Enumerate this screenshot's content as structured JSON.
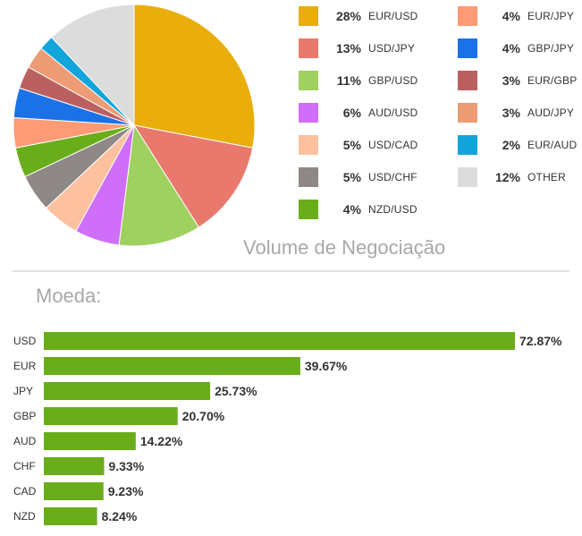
{
  "chart_data": [
    {
      "type": "pie",
      "title": "Volume de Negociação",
      "slices": [
        {
          "label": "EUR/USD",
          "value": 28,
          "display": "28%",
          "color": "#e9ae0b"
        },
        {
          "label": "USD/JPY",
          "value": 13,
          "display": "13%",
          "color": "#e8796c"
        },
        {
          "label": "GBP/USD",
          "value": 11,
          "display": "11%",
          "color": "#9fd160"
        },
        {
          "label": "AUD/USD",
          "value": 6,
          "display": "6%",
          "color": "#cf6ef8"
        },
        {
          "label": "USD/CAD",
          "value": 5,
          "display": "5%",
          "color": "#fdc1a0"
        },
        {
          "label": "USD/CHF",
          "value": 5,
          "display": "5%",
          "color": "#8e8886"
        },
        {
          "label": "NZD/USD",
          "value": 4,
          "display": "4%",
          "color": "#6aad1a"
        },
        {
          "label": "EUR/JPY",
          "value": 4,
          "display": "4%",
          "color": "#fe9a74"
        },
        {
          "label": "GBP/JPY",
          "value": 4,
          "display": "4%",
          "color": "#1b72e6"
        },
        {
          "label": "EUR/GBP",
          "value": 3,
          "display": "3%",
          "color": "#bb6061"
        },
        {
          "label": "AUD/JPY",
          "value": 3,
          "display": "3%",
          "color": "#ec9b74"
        },
        {
          "label": "EUR/AUD",
          "value": 2,
          "display": "2%",
          "color": "#11a5db"
        },
        {
          "label": "OTHER",
          "value": 12,
          "display": "12%",
          "color": "#dcdcdc"
        }
      ]
    },
    {
      "type": "bar",
      "orientation": "horizontal",
      "title": "Moeda:",
      "categories": [
        "USD",
        "EUR",
        "JPY",
        "GBP",
        "AUD",
        "CHF",
        "CAD",
        "NZD"
      ],
      "values": [
        72.87,
        39.67,
        25.73,
        20.7,
        14.22,
        9.33,
        9.23,
        8.24
      ],
      "value_labels": [
        "72.87%",
        "39.67%",
        "25.73%",
        "20.70%",
        "14.22%",
        "9.33%",
        "9.23%",
        "8.24%"
      ],
      "color": "#6aad1a",
      "xlim": [
        0,
        80
      ]
    }
  ]
}
